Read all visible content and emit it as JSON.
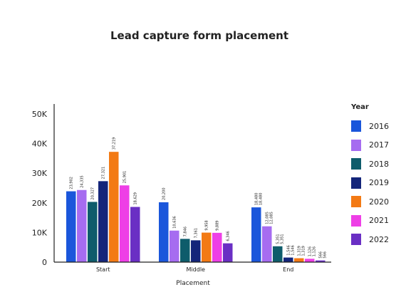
{
  "title": "Lead capture form placement",
  "chart_data": {
    "type": "bar",
    "title": "Lead capture form placement",
    "xlabel": "Placement",
    "ylabel": "",
    "categories": [
      "Start",
      "Middle",
      "End"
    ],
    "ylim": [
      0,
      50000
    ],
    "yticks": [
      0,
      10000,
      20000,
      30000,
      40000,
      50000
    ],
    "ytick_labels": [
      "0",
      "10K",
      "20K",
      "30K",
      "40K",
      "50K"
    ],
    "legend_title": "Year",
    "legend_position": "right",
    "grid": false,
    "series": [
      {
        "name": "2016",
        "color": "#1a56db",
        "values": [
          23902,
          20200,
          18480
        ],
        "labels": [
          "23,902",
          "20,200",
          "18,480"
        ]
      },
      {
        "name": "2017",
        "color": "#a66cf0",
        "values": [
          24335,
          10636,
          12085
        ],
        "labels": [
          "24,335",
          "10,636",
          "12,085"
        ]
      },
      {
        "name": "2018",
        "color": "#0e5c6b",
        "values": [
          20327,
          7846,
          5351
        ],
        "labels": [
          "20,327",
          "7,846",
          "5,351"
        ]
      },
      {
        "name": "2019",
        "color": "#14257a",
        "values": [
          27321,
          7361,
          1546
        ],
        "labels": [
          "27,321",
          "7,361",
          "1,546"
        ]
      },
      {
        "name": "2020",
        "color": "#f37a14",
        "values": [
          37219,
          9958,
          1319
        ],
        "labels": [
          "37,219",
          "9,958",
          "1,319"
        ]
      },
      {
        "name": "2021",
        "color": "#ee3fe6",
        "values": [
          25901,
          9889,
          1126
        ],
        "labels": [
          "25,901",
          "9,889",
          "1,126"
        ]
      },
      {
        "name": "2022",
        "color": "#6a2fc4",
        "values": [
          18629,
          6346,
          566
        ],
        "labels": [
          "18,629",
          "6,346",
          "566"
        ]
      }
    ],
    "second_labels": [
      "",
      "",
      "18,480",
      "12,085",
      "5,351",
      "1,546",
      "1,319",
      "1,126",
      "566"
    ]
  }
}
